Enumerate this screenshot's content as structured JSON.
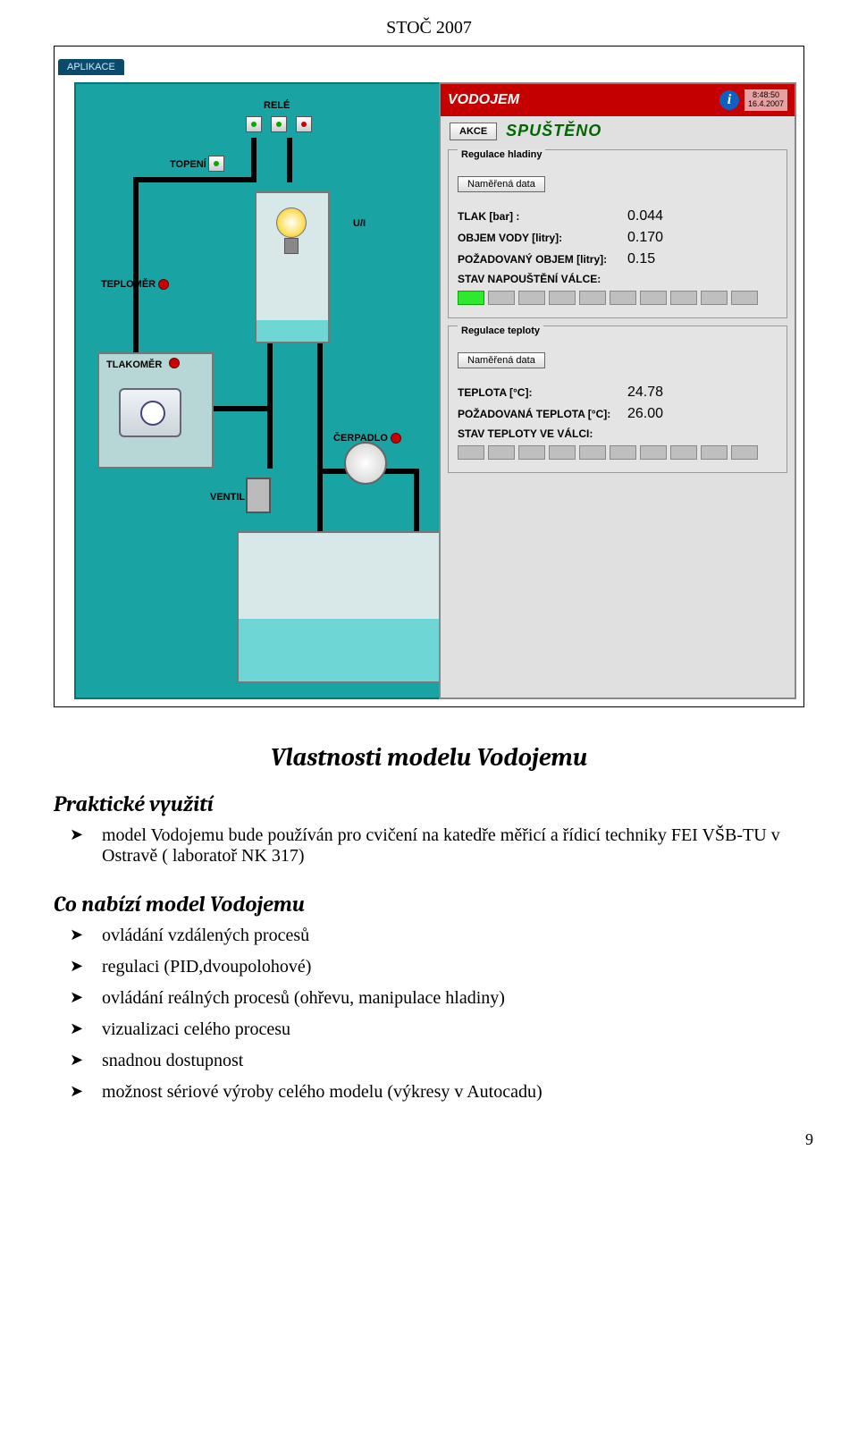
{
  "doc": {
    "header": "STOČ 2007",
    "page_number": "9",
    "title_center": "Vlastnosti modelu Vodojemu",
    "section1": "Praktické využití",
    "bullets1": [
      "model Vodojemu bude používán pro cvičení na katedře měřicí a řídicí techniky FEI VŠB-TU v Ostravě ( laboratoř NK 317)"
    ],
    "section2": "Co nabízí model Vodojemu",
    "bullets2": [
      "ovládání vzdálených procesů",
      "regulaci  (PID,dvoupolohové)",
      "ovládání  reálných procesů  (ohřevu, manipulace hladiny)",
      "vizualizaci celého procesu",
      "snadnou dostupnost",
      "možnost sériové výroby celého modelu (výkresy v Autocadu)"
    ]
  },
  "diagram": {
    "tab": "APLIKACE",
    "labels": {
      "rele": "RELÉ",
      "topeni": "TOPENÍ",
      "u4": "U/I",
      "teplomer": "TEPLOMĚR",
      "tlakomer": "TLAKOMĚR",
      "cerpadlo": "ČERPADLO",
      "ventil": "VENTIL"
    },
    "colors": {
      "bg": "#1aa3a3",
      "pipe": "#000000",
      "water": "#6fd6d6"
    }
  },
  "hmi": {
    "title": "VODOJEM",
    "time": "8:48:50",
    "date": "16.4.2007",
    "akce_button": "AKCE",
    "status": "SPUŠTĚNO",
    "group1": {
      "legend": "Regulace hladiny",
      "sub_button": "Naměřená data",
      "rows": [
        {
          "k": "TLAK [bar] :",
          "v": "0.044"
        },
        {
          "k": "OBJEM VODY [litry]:",
          "v": "0.170"
        },
        {
          "k": "POŽADOVANÝ OBJEM [litry]:",
          "v": "0.15"
        }
      ],
      "state_label": "STAV NAPOUŠTĚNÍ VÁLCE:",
      "bars_total": 10,
      "bars_filled": 1
    },
    "group2": {
      "legend": "Regulace teploty",
      "sub_button": "Naměřená data",
      "rows": [
        {
          "k": "TEPLOTA [°C]:",
          "v": "24.78"
        },
        {
          "k": "POŽADOVANÁ TEPLOTA [°C]:",
          "v": "26.00"
        }
      ],
      "state_label": "STAV TEPLOTY VE VÁLCI:",
      "bars_total": 10,
      "bars_filled": 0
    }
  }
}
